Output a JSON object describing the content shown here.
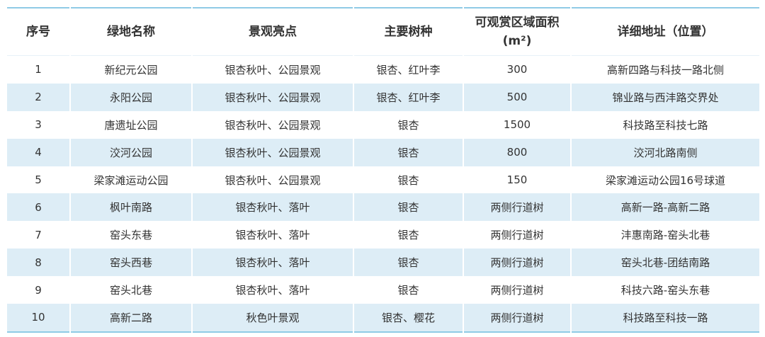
{
  "table": {
    "headers": [
      "序号",
      "绿地名称",
      "景观亮点",
      "主要树种",
      "可观赏区域面积",
      "详细地址（位置）"
    ],
    "area_unit": "(m²)",
    "rows": [
      [
        "1",
        "新纪元公园",
        "银杏秋叶、公园景观",
        "银杏、红叶李",
        "300",
        "高新四路与科技一路北侧"
      ],
      [
        "2",
        "永阳公园",
        "银杏秋叶、公园景观",
        "银杏、红叶李",
        "500",
        "锦业路与西沣路交界处"
      ],
      [
        "3",
        "唐遗址公园",
        "银杏秋叶、公园景观",
        "银杏",
        "1500",
        "科技路至科技七路"
      ],
      [
        "4",
        "洨河公园",
        "银杏秋叶、公园景观",
        "银杏",
        "800",
        "洨河北路南侧"
      ],
      [
        "5",
        "梁家滩运动公园",
        "银杏秋叶、公园景观",
        "银杏",
        "150",
        "梁家滩运动公园16号球道"
      ],
      [
        "6",
        "枫叶南路",
        "银杏秋叶、落叶",
        "银杏",
        "两侧行道树",
        "高新一路-高新二路"
      ],
      [
        "7",
        "窑头东巷",
        "银杏秋叶、落叶",
        "银杏",
        "两侧行道树",
        "沣惠南路-窑头北巷"
      ],
      [
        "8",
        "窑头西巷",
        "银杏秋叶、落叶",
        "银杏",
        "两侧行道树",
        "窑头北巷-团结南路"
      ],
      [
        "9",
        "窑头北巷",
        "银杏秋叶、落叶",
        "银杏",
        "两侧行道树",
        "科技六路-窑头东巷"
      ],
      [
        "10",
        "高新二路",
        "秋色叶景观",
        "银杏、樱花",
        "两侧行道树",
        "科技路至科技一路"
      ]
    ]
  },
  "colors": {
    "accent_line": "#8fcbe6",
    "alt_row": "#ddedf6",
    "text": "#333333"
  }
}
